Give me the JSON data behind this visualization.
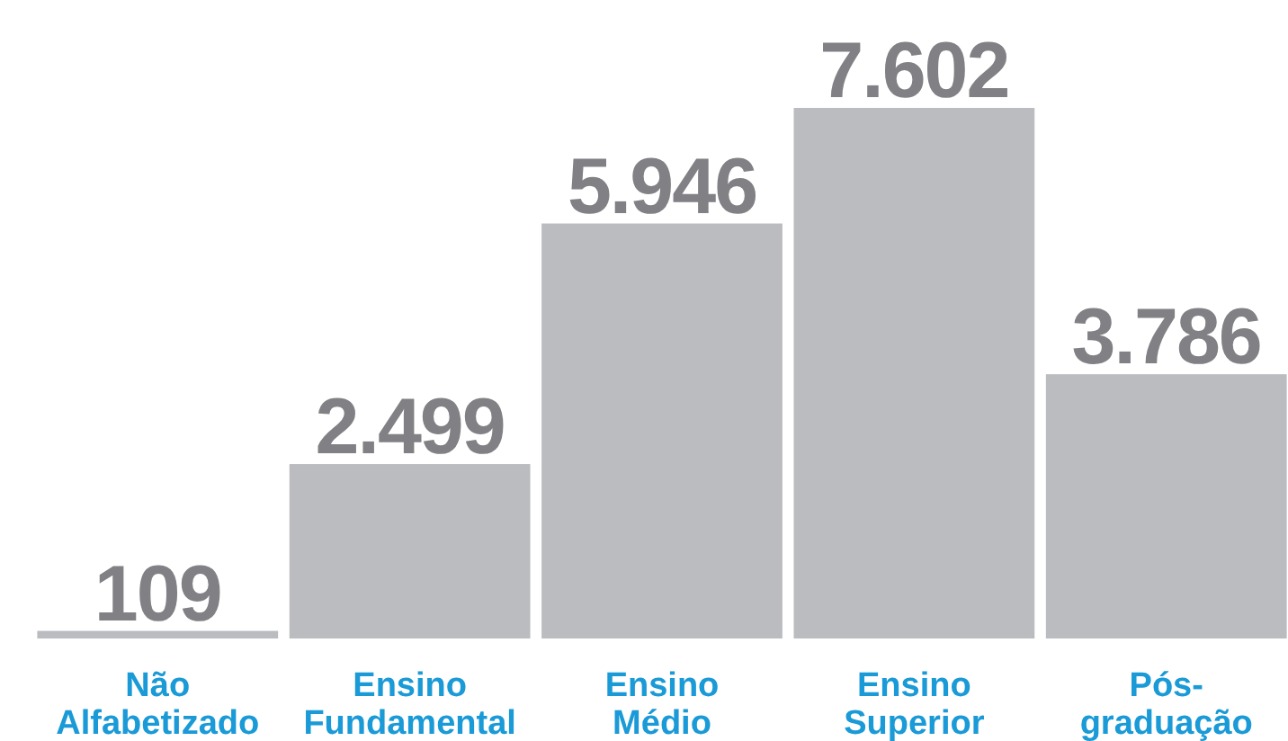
{
  "chart_data": {
    "type": "bar",
    "categories": [
      "Não Alfabetizado",
      "Ensino Fundamental",
      "Ensino Médio",
      "Ensino Superior",
      "Pós-graduação"
    ],
    "values": [
      109,
      2499,
      5946,
      7602,
      3786
    ],
    "color": "#bbbcc0",
    "value_labels": [
      "109",
      "2.499",
      "5.946",
      "7.602",
      "3.786"
    ]
  }
}
